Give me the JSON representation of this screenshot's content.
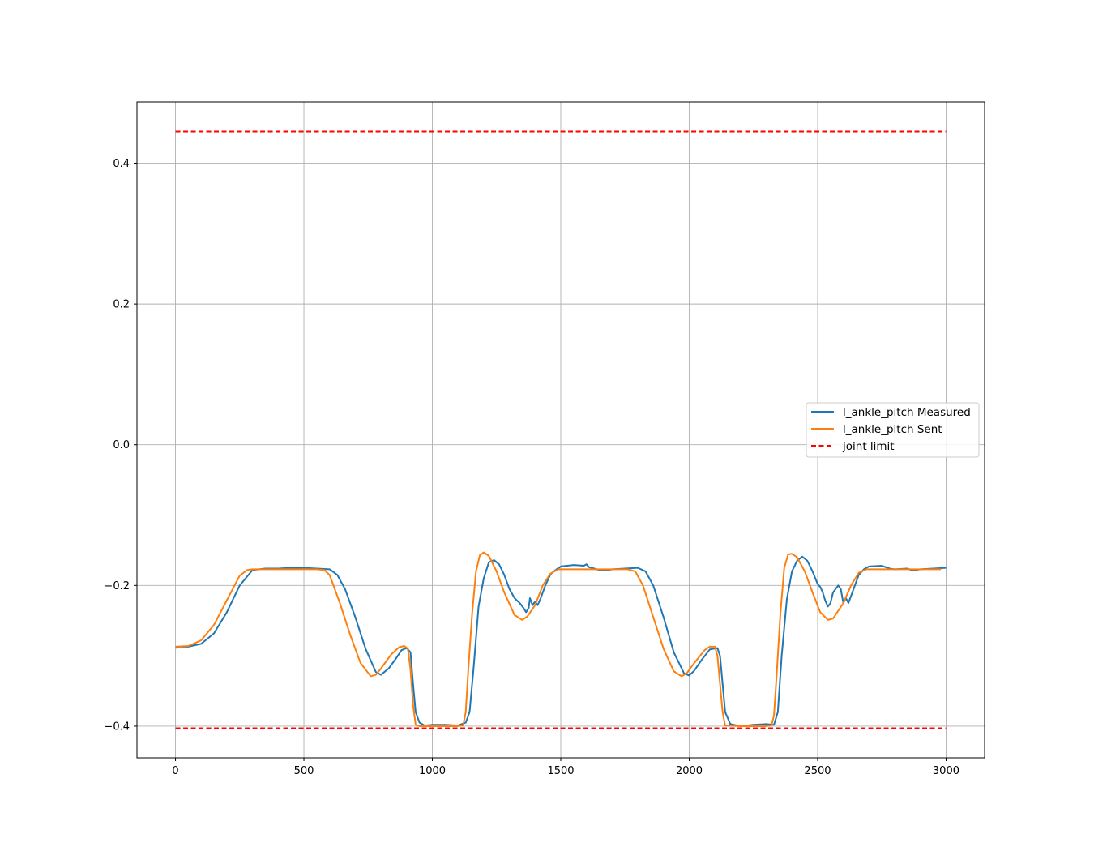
{
  "chart_data": {
    "type": "line",
    "title": "",
    "xlabel": "",
    "ylabel": "",
    "xlim": [
      -150,
      3150
    ],
    "ylim": [
      -0.445,
      0.487
    ],
    "xticks": [
      0,
      500,
      1000,
      1500,
      2000,
      2500,
      3000
    ],
    "xtick_labels": [
      "0",
      "500",
      "1000",
      "1500",
      "2000",
      "2500",
      "3000"
    ],
    "yticks": [
      -0.4,
      -0.2,
      0.0,
      0.2,
      0.4
    ],
    "ytick_labels": [
      "−0.4",
      "−0.2",
      "0.0",
      "0.2",
      "0.4"
    ],
    "grid": true,
    "legend_position": "center-right",
    "series": [
      {
        "name": "l_ankle_pitch Measured",
        "color": "#1f77b4",
        "style": "solid",
        "points": [
          [
            0,
            -0.289
          ],
          [
            10,
            -0.287
          ],
          [
            50,
            -0.287
          ],
          [
            100,
            -0.283
          ],
          [
            150,
            -0.268
          ],
          [
            200,
            -0.238
          ],
          [
            250,
            -0.2
          ],
          [
            300,
            -0.178
          ],
          [
            350,
            -0.176
          ],
          [
            400,
            -0.176
          ],
          [
            450,
            -0.175
          ],
          [
            500,
            -0.175
          ],
          [
            550,
            -0.176
          ],
          [
            600,
            -0.177
          ],
          [
            630,
            -0.185
          ],
          [
            660,
            -0.205
          ],
          [
            700,
            -0.245
          ],
          [
            740,
            -0.29
          ],
          [
            780,
            -0.323
          ],
          [
            800,
            -0.327
          ],
          [
            830,
            -0.318
          ],
          [
            860,
            -0.303
          ],
          [
            880,
            -0.292
          ],
          [
            900,
            -0.289
          ],
          [
            915,
            -0.295
          ],
          [
            925,
            -0.34
          ],
          [
            935,
            -0.38
          ],
          [
            950,
            -0.395
          ],
          [
            970,
            -0.399
          ],
          [
            1000,
            -0.398
          ],
          [
            1050,
            -0.398
          ],
          [
            1100,
            -0.399
          ],
          [
            1130,
            -0.395
          ],
          [
            1145,
            -0.38
          ],
          [
            1160,
            -0.32
          ],
          [
            1180,
            -0.23
          ],
          [
            1200,
            -0.19
          ],
          [
            1220,
            -0.167
          ],
          [
            1240,
            -0.164
          ],
          [
            1260,
            -0.17
          ],
          [
            1280,
            -0.185
          ],
          [
            1300,
            -0.205
          ],
          [
            1320,
            -0.218
          ],
          [
            1340,
            -0.225
          ],
          [
            1355,
            -0.232
          ],
          [
            1365,
            -0.238
          ],
          [
            1375,
            -0.232
          ],
          [
            1380,
            -0.218
          ],
          [
            1390,
            -0.228
          ],
          [
            1400,
            -0.223
          ],
          [
            1410,
            -0.228
          ],
          [
            1420,
            -0.22
          ],
          [
            1440,
            -0.2
          ],
          [
            1460,
            -0.184
          ],
          [
            1480,
            -0.178
          ],
          [
            1500,
            -0.173
          ],
          [
            1550,
            -0.171
          ],
          [
            1590,
            -0.172
          ],
          [
            1600,
            -0.17
          ],
          [
            1610,
            -0.174
          ],
          [
            1650,
            -0.178
          ],
          [
            1670,
            -0.179
          ],
          [
            1700,
            -0.177
          ],
          [
            1750,
            -0.176
          ],
          [
            1800,
            -0.175
          ],
          [
            1830,
            -0.18
          ],
          [
            1860,
            -0.2
          ],
          [
            1900,
            -0.245
          ],
          [
            1940,
            -0.295
          ],
          [
            1980,
            -0.325
          ],
          [
            2000,
            -0.328
          ],
          [
            2020,
            -0.321
          ],
          [
            2050,
            -0.305
          ],
          [
            2080,
            -0.291
          ],
          [
            2110,
            -0.289
          ],
          [
            2120,
            -0.3
          ],
          [
            2130,
            -0.34
          ],
          [
            2140,
            -0.38
          ],
          [
            2160,
            -0.397
          ],
          [
            2200,
            -0.4
          ],
          [
            2250,
            -0.398
          ],
          [
            2300,
            -0.397
          ],
          [
            2330,
            -0.398
          ],
          [
            2345,
            -0.38
          ],
          [
            2360,
            -0.3
          ],
          [
            2380,
            -0.22
          ],
          [
            2400,
            -0.18
          ],
          [
            2420,
            -0.165
          ],
          [
            2440,
            -0.159
          ],
          [
            2460,
            -0.165
          ],
          [
            2480,
            -0.18
          ],
          [
            2500,
            -0.198
          ],
          [
            2510,
            -0.202
          ],
          [
            2520,
            -0.21
          ],
          [
            2530,
            -0.222
          ],
          [
            2540,
            -0.23
          ],
          [
            2550,
            -0.225
          ],
          [
            2560,
            -0.21
          ],
          [
            2570,
            -0.205
          ],
          [
            2580,
            -0.2
          ],
          [
            2590,
            -0.205
          ],
          [
            2600,
            -0.225
          ],
          [
            2610,
            -0.218
          ],
          [
            2620,
            -0.225
          ],
          [
            2640,
            -0.205
          ],
          [
            2660,
            -0.185
          ],
          [
            2680,
            -0.177
          ],
          [
            2700,
            -0.173
          ],
          [
            2750,
            -0.172
          ],
          [
            2780,
            -0.176
          ],
          [
            2800,
            -0.177
          ],
          [
            2850,
            -0.176
          ],
          [
            2870,
            -0.179
          ],
          [
            2880,
            -0.178
          ],
          [
            2900,
            -0.177
          ],
          [
            2950,
            -0.176
          ],
          [
            3000,
            -0.175
          ]
        ]
      },
      {
        "name": "l_ankle_pitch Sent",
        "color": "#ff7f0e",
        "style": "solid",
        "points": [
          [
            0,
            -0.287
          ],
          [
            50,
            -0.286
          ],
          [
            100,
            -0.278
          ],
          [
            150,
            -0.256
          ],
          [
            200,
            -0.221
          ],
          [
            250,
            -0.186
          ],
          [
            280,
            -0.178
          ],
          [
            300,
            -0.177
          ],
          [
            400,
            -0.177
          ],
          [
            500,
            -0.177
          ],
          [
            550,
            -0.177
          ],
          [
            580,
            -0.178
          ],
          [
            600,
            -0.185
          ],
          [
            640,
            -0.225
          ],
          [
            680,
            -0.27
          ],
          [
            720,
            -0.31
          ],
          [
            760,
            -0.329
          ],
          [
            780,
            -0.327
          ],
          [
            800,
            -0.318
          ],
          [
            840,
            -0.298
          ],
          [
            870,
            -0.288
          ],
          [
            890,
            -0.286
          ],
          [
            905,
            -0.29
          ],
          [
            915,
            -0.32
          ],
          [
            925,
            -0.37
          ],
          [
            935,
            -0.398
          ],
          [
            950,
            -0.4
          ],
          [
            1000,
            -0.4
          ],
          [
            1050,
            -0.4
          ],
          [
            1100,
            -0.4
          ],
          [
            1120,
            -0.399
          ],
          [
            1130,
            -0.38
          ],
          [
            1140,
            -0.32
          ],
          [
            1155,
            -0.24
          ],
          [
            1170,
            -0.18
          ],
          [
            1185,
            -0.157
          ],
          [
            1200,
            -0.153
          ],
          [
            1220,
            -0.158
          ],
          [
            1250,
            -0.18
          ],
          [
            1280,
            -0.21
          ],
          [
            1320,
            -0.242
          ],
          [
            1350,
            -0.249
          ],
          [
            1370,
            -0.244
          ],
          [
            1400,
            -0.228
          ],
          [
            1430,
            -0.2
          ],
          [
            1460,
            -0.183
          ],
          [
            1490,
            -0.177
          ],
          [
            1500,
            -0.177
          ],
          [
            1600,
            -0.177
          ],
          [
            1700,
            -0.177
          ],
          [
            1760,
            -0.177
          ],
          [
            1790,
            -0.18
          ],
          [
            1820,
            -0.2
          ],
          [
            1860,
            -0.245
          ],
          [
            1900,
            -0.29
          ],
          [
            1940,
            -0.322
          ],
          [
            1970,
            -0.329
          ],
          [
            1990,
            -0.325
          ],
          [
            2020,
            -0.31
          ],
          [
            2060,
            -0.292
          ],
          [
            2080,
            -0.287
          ],
          [
            2100,
            -0.287
          ],
          [
            2110,
            -0.3
          ],
          [
            2120,
            -0.34
          ],
          [
            2130,
            -0.38
          ],
          [
            2140,
            -0.399
          ],
          [
            2200,
            -0.4
          ],
          [
            2250,
            -0.4
          ],
          [
            2300,
            -0.4
          ],
          [
            2320,
            -0.399
          ],
          [
            2330,
            -0.385
          ],
          [
            2340,
            -0.33
          ],
          [
            2355,
            -0.24
          ],
          [
            2370,
            -0.175
          ],
          [
            2385,
            -0.156
          ],
          [
            2400,
            -0.155
          ],
          [
            2420,
            -0.16
          ],
          [
            2450,
            -0.18
          ],
          [
            2480,
            -0.21
          ],
          [
            2510,
            -0.238
          ],
          [
            2540,
            -0.249
          ],
          [
            2560,
            -0.247
          ],
          [
            2600,
            -0.225
          ],
          [
            2630,
            -0.2
          ],
          [
            2660,
            -0.182
          ],
          [
            2690,
            -0.177
          ],
          [
            2750,
            -0.177
          ],
          [
            2800,
            -0.177
          ],
          [
            2900,
            -0.177
          ],
          [
            2950,
            -0.177
          ],
          [
            2980,
            -0.177
          ]
        ]
      },
      {
        "name": "joint limit",
        "color": "#ff0000",
        "style": "dashed",
        "segments": [
          [
            [
              0,
              0.445
            ],
            [
              3000,
              0.445
            ]
          ],
          [
            [
              0,
              -0.403
            ],
            [
              3000,
              -0.403
            ]
          ]
        ]
      }
    ]
  }
}
